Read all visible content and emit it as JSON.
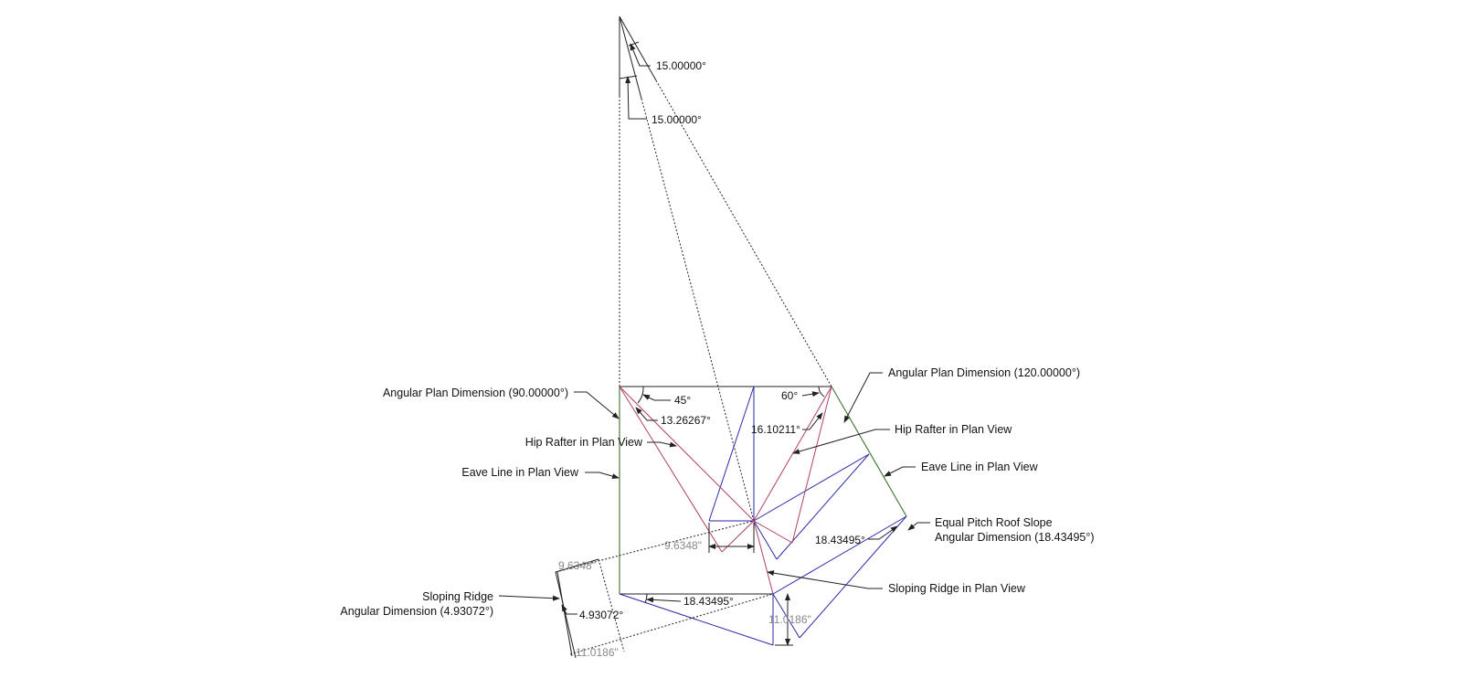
{
  "colors": {
    "eave_line": "#4a7a3a",
    "hip_rafter": "#b04060",
    "roof_geometry": "#2a2aa8",
    "construction": "#222222",
    "dimension_gray": "#888888"
  },
  "apex_angles": {
    "upper": "15.00000°",
    "lower": "15.00000°"
  },
  "angles": {
    "a45": "45°",
    "a13": "13.26267°",
    "a60": "60°",
    "a16": "16.10211°",
    "pitch_right": "18.43495°",
    "pitch_bottom": "18.43495°",
    "ridge": "4.93072°"
  },
  "dimensions": {
    "width_plan": "9.6348\"",
    "width_true": "9.6348\"",
    "height_plan": "11.0186\"",
    "height_true": "11.0186\""
  },
  "callouts": {
    "angular_90": "Angular Plan Dimension (90.00000°)",
    "hip_left": "Hip Rafter in Plan View",
    "eave_left": "Eave Line in Plan View",
    "angular_120": "Angular Plan Dimension (120.00000°)",
    "hip_right": "Hip Rafter in Plan View",
    "eave_right": "Eave Line in Plan View",
    "pitch_line1": "Equal Pitch Roof Slope",
    "pitch_line2": "Angular Dimension (18.43495°)",
    "sloping_ridge_plan": "Sloping Ridge in Plan View",
    "sloping_ridge_line1": "Sloping Ridge",
    "sloping_ridge_line2": "Angular Dimension (4.93072°)"
  }
}
